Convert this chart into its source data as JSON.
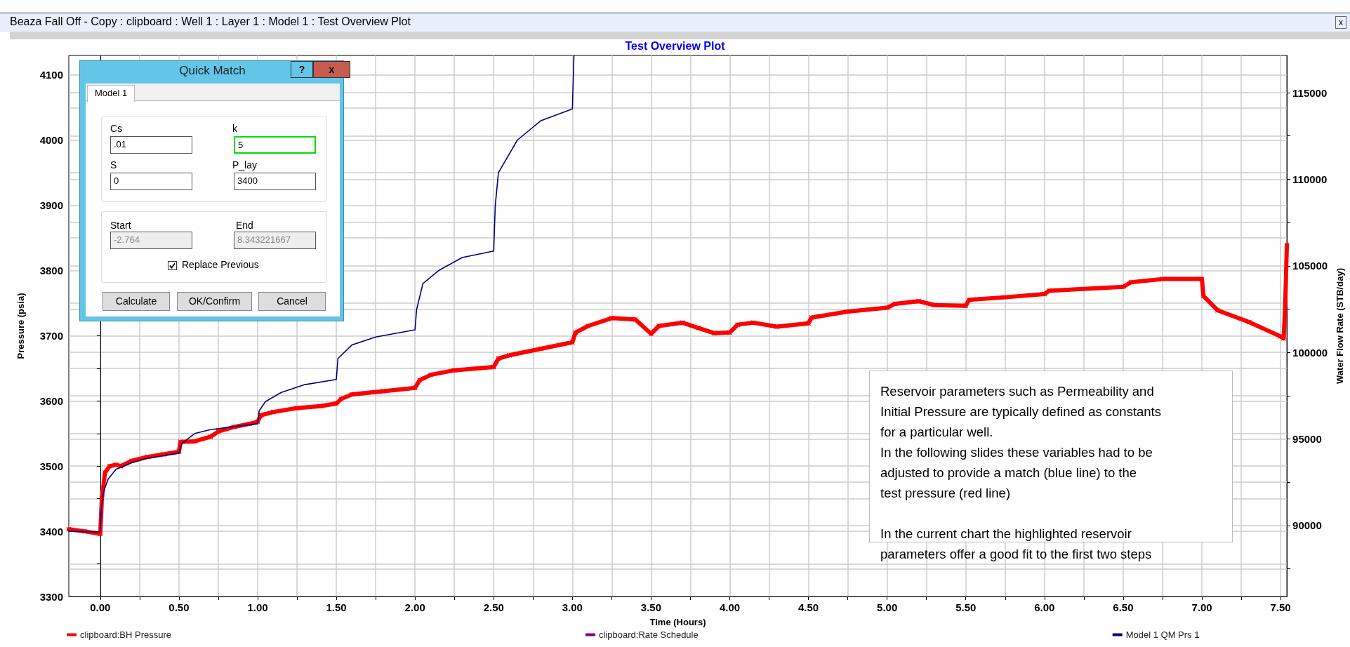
{
  "chart_data": {
    "type": "line",
    "title": "Test Overview Plot",
    "xlabel": "Time (Hours)",
    "ylabel": "Pressure (psia)",
    "y2label": "Water Flow Rate (STB/day)",
    "xlim": [
      -0.2,
      7.54
    ],
    "ylim": [
      3300,
      4130
    ],
    "y2lim": [
      85900,
      117150
    ],
    "xticks": [
      {
        "value": 0,
        "label": "0.00"
      },
      {
        "value": 0.25,
        "label": null
      },
      {
        "value": 0.5,
        "label": "0.50"
      },
      {
        "value": 0.75,
        "label": null
      },
      {
        "value": 1,
        "label": "1.00"
      },
      {
        "value": 1.25,
        "label": null
      },
      {
        "value": 1.5,
        "label": "1.50"
      },
      {
        "value": 1.75,
        "label": null
      },
      {
        "value": 2,
        "label": "2.00"
      },
      {
        "value": 2.25,
        "label": null
      },
      {
        "value": 2.5,
        "label": "2.50"
      },
      {
        "value": 2.75,
        "label": null
      },
      {
        "value": 3,
        "label": "3.00"
      },
      {
        "value": 3.25,
        "label": null
      },
      {
        "value": 3.5,
        "label": "3.50"
      },
      {
        "value": 3.75,
        "label": null
      },
      {
        "value": 4,
        "label": "4.00"
      },
      {
        "value": 4.25,
        "label": null
      },
      {
        "value": 4.5,
        "label": "4.50"
      },
      {
        "value": 4.75,
        "label": null
      },
      {
        "value": 5,
        "label": "5.00"
      },
      {
        "value": 5.25,
        "label": null
      },
      {
        "value": 5.5,
        "label": "5.50"
      },
      {
        "value": 5.75,
        "label": null
      },
      {
        "value": 6,
        "label": "6.00"
      },
      {
        "value": 6.25,
        "label": null
      },
      {
        "value": 6.5,
        "label": "6.50"
      },
      {
        "value": 6.75,
        "label": null
      },
      {
        "value": 7,
        "label": "7.00"
      },
      {
        "value": 7.25,
        "label": null
      },
      {
        "value": 7.5,
        "label": "7.50"
      }
    ],
    "yticks": [
      3300,
      {
        "value": 3350,
        "label": null
      },
      3400,
      {
        "value": 3450,
        "label": null
      },
      3500,
      {
        "value": 3550,
        "label": null
      },
      3600,
      {
        "value": 3650,
        "label": null
      },
      3700,
      {
        "value": 3750,
        "label": null
      },
      3800,
      {
        "value": 3850,
        "label": null
      },
      3900,
      {
        "value": 3950,
        "label": null
      },
      4000,
      {
        "value": 4050,
        "label": null
      },
      4100
    ],
    "y2ticks": [
      {
        "value": 87500,
        "label": null
      },
      90000,
      {
        "value": 92500,
        "label": null
      },
      95000,
      {
        "value": 97500,
        "label": null
      },
      100000,
      {
        "value": 102500,
        "label": null
      },
      105000,
      {
        "value": 107500,
        "label": null
      },
      110000,
      {
        "value": 112500,
        "label": null
      },
      115000
    ],
    "grid": true,
    "legend": "bottom",
    "series": [
      {
        "name": "clipboard:BH Pressure",
        "color": "#ff0000",
        "marker": "cross",
        "x": [
          -0.2,
          -0.1,
          0,
          0.01,
          0.03,
          0.06,
          0.1,
          0.13,
          0.2,
          0.3,
          0.4,
          0.5,
          0.51,
          0.6,
          0.7,
          0.75,
          0.85,
          0.95,
          1.0,
          1.02,
          1.1,
          1.25,
          1.4,
          1.5,
          1.53,
          1.6,
          1.8,
          2.0,
          2.03,
          2.1,
          2.25,
          2.5,
          2.53,
          2.6,
          2.8,
          3.0,
          3.02,
          3.1,
          3.25,
          3.4,
          3.5,
          3.55,
          3.7,
          3.8,
          3.9,
          4.0,
          4.05,
          4.15,
          4.3,
          4.5,
          4.52,
          4.75,
          5.0,
          5.05,
          5.2,
          5.3,
          5.5,
          5.52,
          5.75,
          6.0,
          6.03,
          6.5,
          6.55,
          6.75,
          7.0,
          7.01,
          7.1,
          7.3,
          7.5,
          7.52,
          7.53,
          7.54
        ],
        "values": [
          3403,
          3400,
          3396,
          3450,
          3490,
          3500,
          3502,
          3500,
          3508,
          3514,
          3518,
          3522,
          3537,
          3538,
          3545,
          3553,
          3560,
          3565,
          3568,
          3578,
          3583,
          3589,
          3592,
          3596,
          3603,
          3610,
          3615,
          3620,
          3632,
          3640,
          3647,
          3652,
          3665,
          3670,
          3680,
          3690,
          3705,
          3715,
          3727,
          3725,
          3703,
          3715,
          3720,
          3712,
          3704,
          3705,
          3717,
          3720,
          3714,
          3719,
          3728,
          3737,
          3743,
          3749,
          3753,
          3747,
          3746,
          3755,
          3759,
          3764,
          3769,
          3775,
          3782,
          3787,
          3787,
          3761,
          3739,
          3721,
          3699,
          3696,
          3750,
          3839
        ]
      },
      {
        "name": "clipboard:Rate Schedule",
        "color": "#800080"
      },
      {
        "name": "Model 1 QM Prs 1",
        "color": "#000080",
        "x": [
          -0.2,
          0,
          0.005,
          0.02,
          0.05,
          0.1,
          0.2,
          0.3,
          0.5,
          0.52,
          0.6,
          0.7,
          0.8,
          1.0,
          1.01,
          1.05,
          1.15,
          1.3,
          1.5,
          1.51,
          1.6,
          1.75,
          2.0,
          2.01,
          2.05,
          2.15,
          2.3,
          2.5,
          2.51,
          2.53,
          2.65,
          2.8,
          3.0,
          3.01
        ],
        "values": [
          3400,
          3399,
          3430,
          3460,
          3480,
          3495,
          3505,
          3512,
          3520,
          3535,
          3550,
          3556,
          3559,
          3565,
          3585,
          3599,
          3613,
          3625,
          3633,
          3665,
          3686,
          3698,
          3709,
          3740,
          3780,
          3800,
          3820,
          3830,
          3900,
          3950,
          4000,
          4030,
          4048,
          4130
        ]
      }
    ],
    "annotations": [
      "Beaza Fall Off - Copy : clipboard : Well 1 : Layer 1 : Model 1 : Test Overview Plot",
      "Reservoir parameters such as Permeability and\nInitial Pressure are typically defined as constants\nfor a particular well.\nIn the following slides these variables had to be\nadjusted to provide a match (blue line) to the\ntest pressure (red line)\n\nIn the current chart the highlighted reservoir\nparameters offer a good fit to the first two steps",
      "x",
      "Quick Match",
      "?",
      "x",
      "Model 1",
      "Cs",
      ".01",
      "k",
      "5",
      "S",
      "0",
      "P_lay",
      "3400",
      "Start",
      "-2.764",
      "End",
      "8.343221667",
      "Replace Previous",
      "Calculate",
      "OK/Confirm",
      "Cancel"
    ]
  }
}
